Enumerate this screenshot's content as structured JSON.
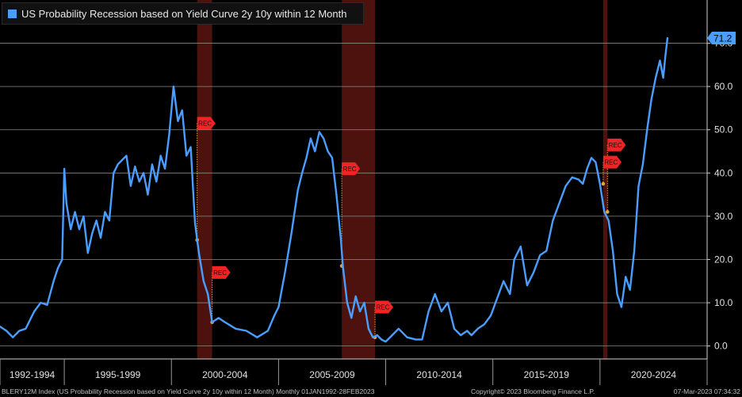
{
  "legend": {
    "label": "US Probability Recession based on Yield Curve 2y 10y within 12 Month",
    "color": "#4a9eff"
  },
  "footer": {
    "left": "BLERY12M Index (US Probability Recession based on Yield Curve 2y 10y within 12 Month)  Monthly 01JAN1992-28FEB2023",
    "center": "Copyright© 2023 Bloomberg Finance L.P.",
    "right": "07-Mar-2023 07:34:32"
  },
  "chart_data": {
    "type": "line",
    "title": "US Probability Recession based on Yield Curve 2y 10y within 12 Month",
    "frequency": "Monthly",
    "range": "01JAN1992-28FEB2023",
    "last_value_label": "71.2",
    "line_color": "#4a9eff",
    "recession_shade_color": "#5a1510",
    "y_axis": {
      "side": "right",
      "ticks": [
        0.0,
        10.0,
        20.0,
        30.0,
        40.0,
        50.0,
        60.0,
        70.0
      ],
      "ylim": [
        -3,
        80
      ]
    },
    "x_axis": {
      "xlim": [
        1992.0,
        2025.0
      ],
      "period_labels": [
        "1992-1994",
        "1995-1999",
        "2000-2004",
        "2005-2009",
        "2010-2014",
        "2015-2019",
        "2020-2024"
      ],
      "period_bounds": [
        1992.0,
        1995.0,
        2000.0,
        2005.0,
        2010.0,
        2015.0,
        2020.0,
        2025.0
      ]
    },
    "recession_bands": [
      [
        2001.2,
        2001.9
      ],
      [
        2007.95,
        2009.5
      ],
      [
        2020.15,
        2020.35
      ]
    ],
    "rec_markers": [
      {
        "label": "REC",
        "x": 2001.2,
        "y_start": 51.5,
        "y_end": 24.5
      },
      {
        "label": "REC",
        "x": 2001.9,
        "y_start": 17.0,
        "y_end": 5.5
      },
      {
        "label": "REC",
        "x": 2007.95,
        "y_start": 41.0,
        "y_end": 18.5
      },
      {
        "label": "REC",
        "x": 2009.5,
        "y_start": 9.0,
        "y_end": 2.0
      },
      {
        "label": "REC",
        "x": 2020.15,
        "y_start": 42.5,
        "y_end": 37.5
      },
      {
        "label": "REC",
        "x": 2020.35,
        "y_start": 46.5,
        "y_end": 31.0
      }
    ],
    "series": [
      {
        "x": [
          1992.0,
          1992.3,
          1992.6,
          1992.9,
          1993.2,
          1993.6,
          1993.9,
          1994.2,
          1994.5,
          1994.7,
          1994.9,
          1995.0,
          1995.1,
          1995.3,
          1995.5,
          1995.7,
          1995.9,
          1996.1,
          1996.3,
          1996.5,
          1996.7,
          1996.9,
          1997.1,
          1997.3,
          1997.5,
          1997.7,
          1997.9,
          1998.1,
          1998.3,
          1998.5,
          1998.7,
          1998.9,
          1999.1,
          1999.3,
          1999.5,
          1999.7,
          1999.9,
          2000.1,
          2000.3,
          2000.5,
          2000.7,
          2000.9,
          2001.0,
          2001.1,
          2001.2,
          2001.3,
          2001.5,
          2001.7,
          2001.9,
          2002.2,
          2002.5,
          2003.0,
          2003.5,
          2004.0,
          2004.5,
          2004.8,
          2005.0,
          2005.3,
          2005.6,
          2005.9,
          2006.1,
          2006.3,
          2006.5,
          2006.7,
          2006.9,
          2007.1,
          2007.3,
          2007.5,
          2007.7,
          2007.9,
          2008.0,
          2008.2,
          2008.4,
          2008.6,
          2008.8,
          2009.0,
          2009.2,
          2009.4,
          2009.6,
          2009.8,
          2010.0,
          2010.3,
          2010.6,
          2011.0,
          2011.4,
          2011.7,
          2012.0,
          2012.3,
          2012.6,
          2012.9,
          2013.2,
          2013.5,
          2013.8,
          2014.0,
          2014.3,
          2014.6,
          2014.9,
          2015.2,
          2015.5,
          2015.8,
          2016.0,
          2016.3,
          2016.6,
          2016.9,
          2017.2,
          2017.5,
          2017.8,
          2018.1,
          2018.4,
          2018.7,
          2019.0,
          2019.2,
          2019.4,
          2019.6,
          2019.8,
          2020.0,
          2020.2,
          2020.4,
          2020.6,
          2020.8,
          2021.0,
          2021.2,
          2021.4,
          2021.6,
          2021.8,
          2022.0,
          2022.2,
          2022.4,
          2022.6,
          2022.8,
          2022.95,
          2023.05,
          2023.15
        ],
        "y": [
          4.5,
          3.5,
          2.0,
          3.5,
          4.0,
          8.0,
          10.0,
          9.5,
          15.0,
          18.0,
          20.0,
          41.0,
          33.0,
          27.0,
          31.0,
          27.0,
          30.0,
          21.5,
          26.0,
          29.0,
          25.0,
          31.0,
          29.0,
          40.0,
          42.0,
          43.0,
          44.0,
          37.0,
          41.5,
          38.0,
          40.0,
          35.0,
          42.0,
          38.0,
          44.0,
          41.0,
          49.0,
          60.0,
          52.0,
          54.5,
          44.0,
          46.0,
          37.0,
          28.5,
          24.5,
          21.0,
          15.0,
          12.0,
          5.5,
          6.5,
          5.5,
          4.0,
          3.5,
          2.0,
          3.5,
          7.0,
          9.0,
          17.0,
          26.0,
          36.0,
          40.0,
          43.5,
          48.0,
          45.0,
          49.5,
          48.0,
          45.0,
          43.5,
          35.0,
          25.0,
          18.5,
          10.0,
          6.5,
          11.5,
          8.0,
          10.0,
          4.0,
          2.0,
          2.5,
          1.5,
          1.0,
          2.5,
          4.0,
          2.0,
          1.5,
          1.5,
          8.0,
          12.0,
          8.0,
          10.0,
          4.0,
          2.5,
          3.5,
          2.5,
          4.0,
          5.0,
          7.0,
          11.0,
          15.0,
          12.0,
          20.0,
          23.0,
          14.0,
          17.0,
          21.0,
          22.0,
          29.0,
          33.0,
          37.0,
          39.0,
          38.5,
          37.5,
          41.0,
          43.5,
          42.5,
          37.5,
          31.0,
          29.0,
          22.0,
          12.0,
          9.0,
          16.0,
          13.0,
          22.0,
          37.0,
          42.0,
          50.0,
          57.0,
          62.0,
          66.0,
          62.0,
          67.0,
          71.2
        ]
      }
    ]
  }
}
